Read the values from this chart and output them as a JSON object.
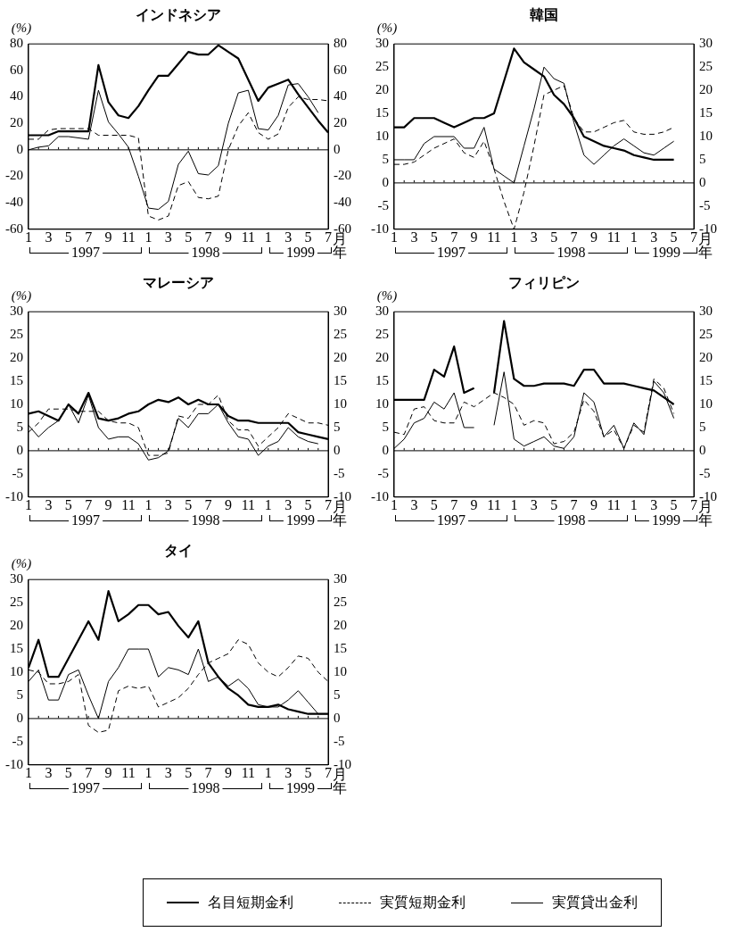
{
  "chart_data": [
    {
      "type": "line",
      "title": "インドネシア",
      "ylabel": "(%)",
      "xlabel": "月",
      "categories": [
        "1",
        null,
        "3",
        null,
        "5",
        null,
        "7",
        null,
        "9",
        null,
        "11",
        null,
        "1",
        null,
        "3",
        null,
        "5",
        null,
        "7",
        null,
        "9",
        null,
        "11",
        null,
        "1",
        null,
        "3",
        null,
        "5",
        null,
        "7"
      ],
      "ylim": [
        -60,
        80
      ],
      "yticks": [
        -60,
        -40,
        -20,
        0,
        20,
        40,
        60,
        80
      ],
      "y2lim": [
        -60,
        80
      ],
      "y2ticks": [
        -60,
        -40,
        -20,
        0,
        20,
        40,
        60,
        80
      ],
      "ref_lines": [
        {
          "axis": "y",
          "value": 0
        }
      ],
      "annotations": [
        "1997",
        "1998",
        "1999",
        "年"
      ],
      "series": [
        {
          "color": "#000000",
          "line_style": "solid",
          "values": [
            11,
            11,
            11,
            14,
            14,
            14,
            14,
            64,
            36,
            26,
            24,
            33,
            45,
            56,
            56,
            65,
            74,
            72,
            72,
            79,
            74,
            69,
            53,
            37,
            47,
            50,
            53,
            42,
            32,
            22,
            13
          ]
        },
        {
          "color": "#000000",
          "line_style": "dashed",
          "values": [
            8,
            8,
            15,
            16,
            16,
            16,
            16,
            11,
            11,
            11,
            11,
            9,
            -50,
            -53,
            -50,
            -27,
            -24,
            -36,
            -37,
            -35,
            0,
            18,
            28,
            13,
            8,
            12,
            32,
            40,
            38,
            38,
            37
          ]
        },
        {
          "color": "#000000",
          "line_style": "solid",
          "values": [
            0,
            2,
            3,
            10,
            10,
            9,
            8,
            45,
            21,
            12,
            2,
            -20,
            -44,
            -45,
            -39,
            -11,
            -1,
            -18,
            -19,
            -12,
            20,
            43,
            45,
            16,
            15,
            26,
            49,
            50,
            40,
            28,
            null
          ]
        }
      ]
    },
    {
      "type": "line",
      "title": "韓国",
      "ylabel": "(%)",
      "xlabel": "月",
      "categories": [
        "1",
        null,
        "3",
        null,
        "5",
        null,
        "7",
        null,
        "9",
        null,
        "11",
        null,
        "1",
        null,
        "3",
        null,
        "5",
        null,
        "7",
        null,
        "9",
        null,
        "11",
        null,
        "1",
        null,
        "3",
        null,
        "5",
        null,
        "7"
      ],
      "ylim": [
        -10,
        30
      ],
      "yticks": [
        -10,
        -5,
        0,
        5,
        10,
        15,
        20,
        25,
        30
      ],
      "y2lim": [
        -10,
        30
      ],
      "y2ticks": [
        -10,
        -5,
        0,
        5,
        10,
        15,
        20,
        25,
        30
      ],
      "ref_lines": [
        {
          "axis": "y",
          "value": 0
        }
      ],
      "annotations": [
        "1997",
        "1998",
        "1999",
        "年"
      ],
      "series": [
        {
          "color": "#000000",
          "line_style": "solid",
          "values": [
            12,
            12,
            14,
            14,
            14,
            13,
            12,
            13,
            14,
            14,
            15,
            22,
            29,
            26,
            24.5,
            23,
            19,
            17,
            14,
            10,
            9,
            8,
            7.5,
            7,
            6,
            5.5,
            5,
            5,
            5,
            null,
            null
          ]
        },
        {
          "color": "#000000",
          "line_style": "dashed",
          "values": [
            4,
            4,
            4.5,
            6,
            7.5,
            8.5,
            9.5,
            6.5,
            5.5,
            9,
            3,
            -4,
            -10,
            -2,
            8,
            19,
            20,
            21,
            14,
            11,
            11,
            12,
            13,
            13.5,
            11,
            10.5,
            10.5,
            11,
            12,
            null,
            null
          ]
        },
        {
          "color": "#000000",
          "line_style": "solid",
          "values": [
            5,
            5,
            5,
            8.5,
            10,
            10,
            10,
            7.5,
            7.5,
            12,
            3,
            1.5,
            0,
            8,
            16,
            25,
            22.5,
            21.5,
            13,
            6,
            4,
            6,
            8,
            9.5,
            8,
            6.5,
            6,
            7.5,
            9,
            null,
            null
          ]
        }
      ]
    },
    {
      "type": "line",
      "title": "マレーシア",
      "ylabel": "(%)",
      "xlabel": "月",
      "categories": [
        "1",
        null,
        "3",
        null,
        "5",
        null,
        "7",
        null,
        "9",
        null,
        "11",
        null,
        "1",
        null,
        "3",
        null,
        "5",
        null,
        "7",
        null,
        "9",
        null,
        "11",
        null,
        "1",
        null,
        "3",
        null,
        "5",
        null,
        "7"
      ],
      "ylim": [
        -10,
        30
      ],
      "yticks": [
        -10,
        -5,
        0,
        5,
        10,
        15,
        20,
        25,
        30
      ],
      "y2lim": [
        -10,
        30
      ],
      "y2ticks": [
        -10,
        -5,
        0,
        5,
        10,
        15,
        20,
        25,
        30
      ],
      "ref_lines": [
        {
          "axis": "y",
          "value": 0
        }
      ],
      "annotations": [
        "1997",
        "1998",
        "1999",
        "年"
      ],
      "series": [
        {
          "color": "#000000",
          "line_style": "solid",
          "values": [
            8,
            8.5,
            7.5,
            6.5,
            10,
            8,
            12.5,
            7,
            6.5,
            7,
            8,
            8.5,
            10,
            11,
            10.5,
            11.5,
            10,
            11,
            10,
            10,
            7.5,
            6.5,
            6.5,
            6,
            6,
            6,
            6,
            4,
            3.5,
            3,
            2.5
          ]
        },
        {
          "color": "#000000",
          "line_style": "dashed",
          "values": [
            4,
            6,
            9,
            9,
            9,
            8.5,
            8.5,
            8.5,
            6.5,
            6,
            6,
            5,
            -1,
            -1,
            -0.5,
            7.5,
            7,
            10,
            10,
            12,
            6.5,
            4.5,
            4.5,
            1,
            3,
            5,
            8,
            7,
            6,
            6,
            5.5
          ]
        },
        {
          "color": "#000000",
          "line_style": "solid",
          "values": [
            5.5,
            3,
            5,
            6.5,
            10,
            6,
            12,
            5,
            2.5,
            3,
            3,
            1.5,
            -2,
            -1.5,
            0,
            7,
            5,
            8,
            8,
            10,
            6,
            3,
            2.5,
            -1,
            1,
            2,
            5,
            3,
            2,
            1.5,
            null
          ]
        }
      ]
    },
    {
      "type": "line",
      "title": "フィリピン",
      "ylabel": "(%)",
      "xlabel": "月",
      "categories": [
        "1",
        null,
        "3",
        null,
        "5",
        null,
        "7",
        null,
        "9",
        null,
        "11",
        null,
        "1",
        null,
        "3",
        null,
        "5",
        null,
        "7",
        null,
        "9",
        null,
        "11",
        null,
        "1",
        null,
        "3",
        null,
        "5",
        null,
        "7"
      ],
      "ylim": [
        -10,
        30
      ],
      "yticks": [
        -10,
        -5,
        0,
        5,
        10,
        15,
        20,
        25,
        30
      ],
      "y2lim": [
        -10,
        30
      ],
      "y2ticks": [
        -10,
        -5,
        0,
        5,
        10,
        15,
        20,
        25,
        30
      ],
      "ref_lines": [
        {
          "axis": "y",
          "value": 0
        }
      ],
      "annotations": [
        "1997",
        "1998",
        "1999",
        "年"
      ],
      "series": [
        {
          "color": "#000000",
          "line_style": "solid",
          "values": [
            11,
            11,
            11,
            11,
            17.5,
            16,
            22.5,
            12.5,
            13.5,
            null,
            12.5,
            28,
            15.5,
            14,
            14,
            14.5,
            14.5,
            14.5,
            14,
            17.5,
            17.5,
            14.5,
            14.5,
            14.5,
            14,
            13.5,
            13,
            11.5,
            10,
            null,
            null
          ]
        },
        {
          "color": "#000000",
          "line_style": "dashed",
          "values": [
            4,
            3.5,
            9,
            9.5,
            6.5,
            6,
            6,
            10.5,
            9.5,
            11,
            12.5,
            11.5,
            10,
            5.5,
            6.5,
            6,
            1.5,
            2,
            4,
            11,
            8.5,
            3,
            4.5,
            0.5,
            5.5,
            4,
            15.5,
            13.5,
            8,
            null,
            null
          ]
        },
        {
          "color": "#000000",
          "line_style": "solid",
          "values": [
            0.5,
            2.5,
            6,
            7,
            10.5,
            9,
            12.5,
            5,
            5,
            null,
            5.5,
            17,
            2.5,
            1,
            2,
            3,
            1,
            0.5,
            3,
            12.5,
            10.5,
            3,
            5.5,
            0.5,
            6,
            3.5,
            15,
            12.5,
            7,
            null,
            null
          ]
        }
      ]
    },
    {
      "type": "line",
      "title": "タイ",
      "ylabel": "(%)",
      "xlabel": "月",
      "categories": [
        "1",
        null,
        "3",
        null,
        "5",
        null,
        "7",
        null,
        "9",
        null,
        "11",
        null,
        "1",
        null,
        "3",
        null,
        "5",
        null,
        "7",
        null,
        "9",
        null,
        "11",
        null,
        "1",
        null,
        "3",
        null,
        "5",
        null,
        "7"
      ],
      "ylim": [
        -10,
        30
      ],
      "yticks": [
        -10,
        -5,
        0,
        5,
        10,
        15,
        20,
        25,
        30
      ],
      "y2lim": [
        -10,
        30
      ],
      "y2ticks": [
        -10,
        -5,
        0,
        5,
        10,
        15,
        20,
        25,
        30
      ],
      "ref_lines": [
        {
          "axis": "y",
          "value": 0
        }
      ],
      "annotations": [
        "1997",
        "1998",
        "1999",
        "年"
      ],
      "legend": "bottom",
      "series": [
        {
          "name": "名目短期金利",
          "color": "#000000",
          "line_style": "solid",
          "values": [
            11,
            17,
            9,
            9,
            13,
            17,
            21,
            17,
            27.5,
            21,
            22.5,
            24.5,
            24.5,
            22.5,
            23,
            20,
            17.5,
            21,
            12,
            9,
            6.5,
            5,
            3,
            2.5,
            2.5,
            3,
            2,
            1.5,
            1,
            1,
            1
          ]
        },
        {
          "name": "実質短期金利",
          "color": "#000000",
          "line_style": "dashed",
          "values": [
            10.5,
            10,
            7.5,
            7.5,
            8,
            9.5,
            -1.5,
            -3,
            -2.5,
            6,
            7,
            6.5,
            7,
            2.5,
            3.5,
            4.5,
            6.5,
            9.5,
            12,
            13,
            14,
            17,
            16,
            12,
            10,
            9,
            11,
            13.5,
            13,
            10,
            8
          ]
        },
        {
          "name": "実質貸出金利",
          "color": "#000000",
          "line_style": "solid",
          "values": [
            8,
            10.5,
            4,
            4,
            9.5,
            10.5,
            5,
            0,
            8,
            11,
            15,
            15,
            15,
            9,
            11,
            10.5,
            9.5,
            15,
            8,
            9,
            7,
            8.5,
            6.5,
            3,
            2.5,
            2.5,
            4,
            6,
            3.5,
            1,
            1
          ]
        }
      ]
    }
  ]
}
